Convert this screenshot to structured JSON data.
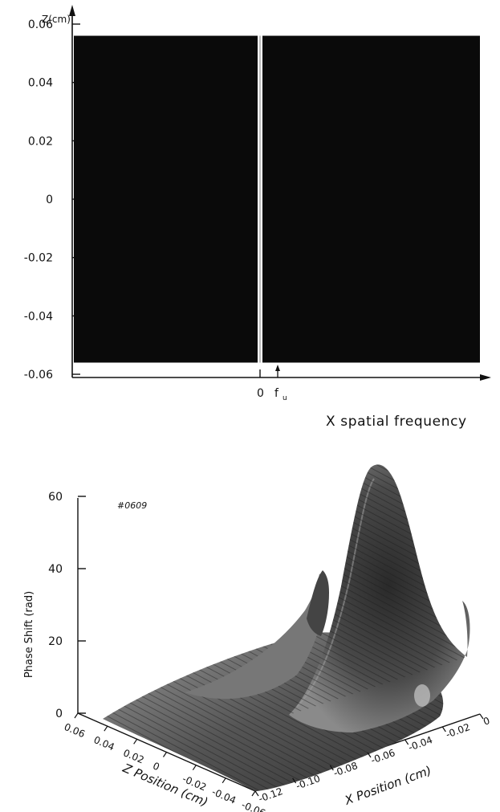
{
  "chart_data": [
    {
      "type": "heatmap",
      "plot_id": "#0609",
      "ylabel": "Z(cm)",
      "xlabel": "X spatial frequency",
      "ylim": [
        -0.06,
        0.06
      ],
      "yticks": [
        0.06,
        0.04,
        0.02,
        0,
        -0.02,
        -0.04,
        -0.06
      ],
      "ytick_labels": [
        "0.06",
        "0.04",
        "0.02",
        "0",
        "-0.02",
        "-0.04",
        "-0.06"
      ],
      "z_range": [
        -0.056,
        0.056
      ],
      "xtick_labels": [
        "0"
      ],
      "annotation": "f",
      "annotation_subscript": "u",
      "fill_color": "#0a0a0a"
    },
    {
      "type": "surface",
      "plot_id": "#0609",
      "zlabel": "Phase Shift (rad)",
      "zlim": [
        0,
        60
      ],
      "zticks": [
        0,
        20,
        40,
        60
      ],
      "ztick_labels": [
        "0",
        "20",
        "40",
        "60"
      ],
      "ylabel": "Z Position (cm)",
      "yticks": [
        0.06,
        0.04,
        0.02,
        0,
        -0.02,
        -0.04,
        -0.06
      ],
      "ytick_labels": [
        "0.06",
        "0.04",
        "0.02",
        "0",
        "-0.02",
        "-0.04",
        "-0.06"
      ],
      "xlabel": "X Position (cm)",
      "xticks": [
        -0.12,
        -0.1,
        -0.08,
        -0.06,
        -0.04,
        -0.02,
        0
      ],
      "xtick_labels": [
        "-0.12",
        "-0.10",
        "-0.08",
        "-0.06",
        "-0.04",
        "-0.02",
        "0"
      ],
      "peaks": [
        {
          "x": -0.03,
          "z": 0.0,
          "phase": 65
        },
        {
          "x": -0.06,
          "z": 0.02,
          "phase": 40
        }
      ]
    }
  ]
}
